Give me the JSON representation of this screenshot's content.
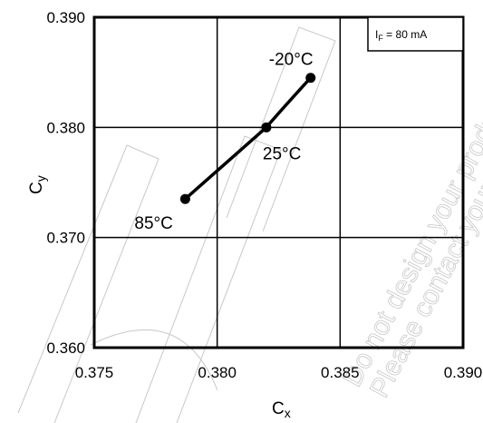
{
  "chart_data": {
    "type": "line",
    "title": "",
    "xlabel": "C",
    "xlabel_sub": "x",
    "ylabel": "C",
    "ylabel_sub": "y",
    "xlim": [
      0.375,
      0.39
    ],
    "ylim": [
      0.36,
      0.39
    ],
    "x_ticks": [
      "0.375",
      "0.380",
      "0.385",
      "0.390"
    ],
    "y_ticks": [
      "0.390",
      "0.380",
      "0.370",
      "0.360"
    ],
    "grid": true,
    "series": [
      {
        "points": [
          {
            "x": 0.3787,
            "y": 0.3735,
            "label": "85°C"
          },
          {
            "x": 0.382,
            "y": 0.38,
            "label": "25°C"
          },
          {
            "x": 0.3838,
            "y": 0.3845,
            "label": "-20°C"
          }
        ]
      }
    ],
    "legend_box": {
      "main": "I",
      "sub": "F",
      "rest": " = 80 mA",
      "placement": "top-right"
    }
  },
  "watermark": {
    "line1": "Do not design your product",
    "line2": "Please contact your"
  }
}
